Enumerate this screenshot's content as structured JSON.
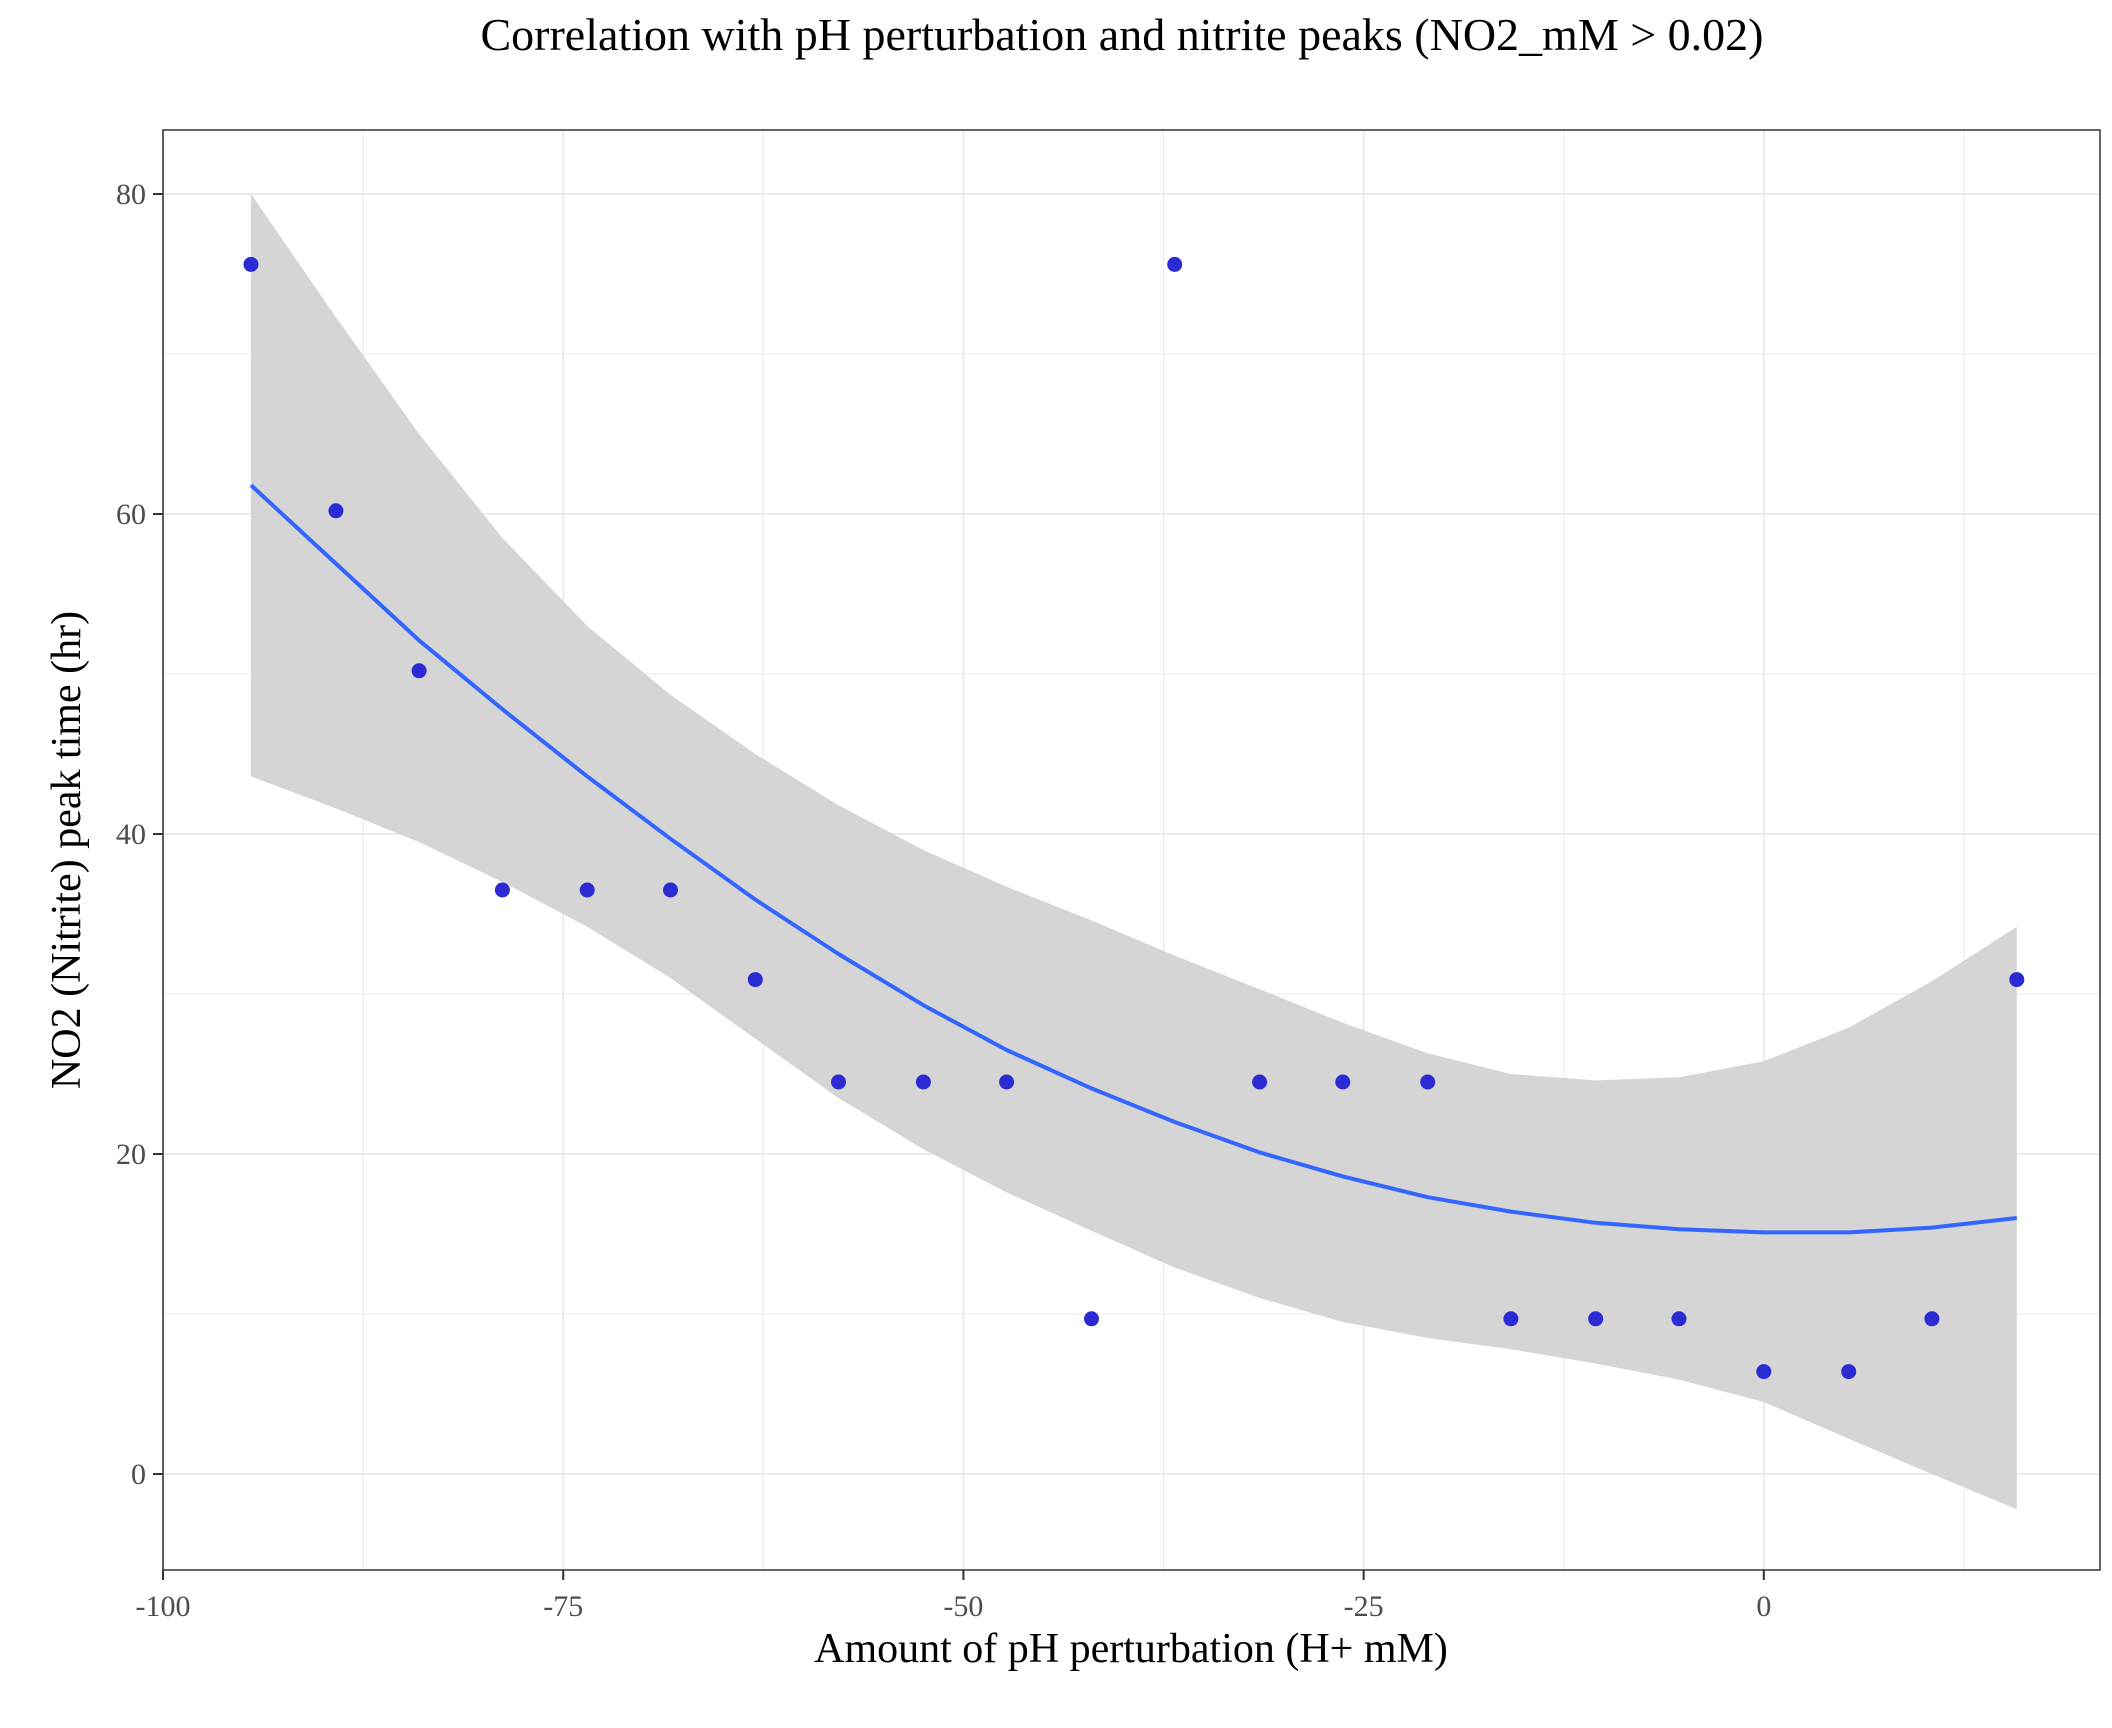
{
  "chart_data": {
    "type": "scatter",
    "title": "Correlation with pH perturbation and nitrite peaks (NO2_mM > 0.02)",
    "xlabel": "Amount of pH perturbation (H+ mM)",
    "ylabel": "NO2 (Nitrite) peak time (hr)",
    "xlim": [
      -100,
      21
    ],
    "ylim": [
      -6,
      84
    ],
    "x_ticks": [
      -100,
      -75,
      -50,
      -25,
      0
    ],
    "x_tick_labels": [
      "-100",
      "-75",
      "-50",
      "-25",
      "0"
    ],
    "y_ticks": [
      0,
      20,
      40,
      60,
      80
    ],
    "y_tick_labels": [
      "0",
      "20",
      "40",
      "60",
      "80"
    ],
    "grid": true,
    "legend": "none",
    "points": [
      {
        "x": -94.5,
        "y": 75.6
      },
      {
        "x": -89.2,
        "y": 60.2
      },
      {
        "x": -84.0,
        "y": 50.2
      },
      {
        "x": -78.8,
        "y": 36.5
      },
      {
        "x": -73.5,
        "y": 36.5
      },
      {
        "x": -68.3,
        "y": 36.5
      },
      {
        "x": -63.0,
        "y": 30.9
      },
      {
        "x": -57.8,
        "y": 24.5
      },
      {
        "x": -52.5,
        "y": 24.5
      },
      {
        "x": -47.3,
        "y": 24.5
      },
      {
        "x": -42.0,
        "y": 9.7
      },
      {
        "x": -36.8,
        "y": 75.6
      },
      {
        "x": -31.5,
        "y": 24.5
      },
      {
        "x": -26.3,
        "y": 24.5
      },
      {
        "x": -21.0,
        "y": 24.5
      },
      {
        "x": -15.8,
        "y": 9.7
      },
      {
        "x": -10.5,
        "y": 9.7
      },
      {
        "x": -5.3,
        "y": 9.7
      },
      {
        "x": 0.0,
        "y": 6.4
      },
      {
        "x": 5.3,
        "y": 6.4
      },
      {
        "x": 10.5,
        "y": 9.7
      },
      {
        "x": 15.8,
        "y": 30.9
      }
    ],
    "smooth_fit": {
      "x": [
        -94.5,
        -89.2,
        -84.0,
        -78.8,
        -73.5,
        -68.3,
        -63.0,
        -57.8,
        -52.5,
        -47.3,
        -42.0,
        -36.8,
        -31.5,
        -26.3,
        -21.0,
        -15.8,
        -10.5,
        -5.3,
        0.0,
        5.3,
        10.5,
        15.8
      ],
      "y": [
        61.8,
        56.9,
        52.1,
        47.8,
        43.6,
        39.7,
        35.9,
        32.5,
        29.3,
        26.5,
        24.1,
        22.0,
        20.1,
        18.6,
        17.3,
        16.4,
        15.7,
        15.3,
        15.1,
        15.1,
        15.4,
        16.0
      ]
    },
    "confidence_band": {
      "x": [
        -94.5,
        -89.2,
        -84.0,
        -78.8,
        -73.5,
        -68.3,
        -63.0,
        -57.8,
        -52.5,
        -47.3,
        -42.0,
        -36.8,
        -31.5,
        -26.3,
        -21.0,
        -15.8,
        -10.5,
        -5.3,
        0.0,
        5.3,
        10.5,
        15.8
      ],
      "upper": [
        80.0,
        72.3,
        65.0,
        58.5,
        53.0,
        48.7,
        45.0,
        41.8,
        39.0,
        36.7,
        34.6,
        32.4,
        30.3,
        28.2,
        26.3,
        25.0,
        24.6,
        24.8,
        25.8,
        27.9,
        30.8,
        34.2
      ],
      "lower": [
        43.6,
        41.6,
        39.5,
        37.0,
        34.2,
        31.0,
        27.2,
        23.5,
        20.3,
        17.6,
        15.2,
        12.9,
        11.0,
        9.5,
        8.5,
        7.8,
        6.9,
        5.9,
        4.5,
        2.2,
        0.0,
        -2.2
      ]
    },
    "colors": {
      "points": "#2b2bd4",
      "line": "#3366ff",
      "band": "#d5d5d5",
      "grid": "#ebebeb",
      "panel_border": "#333333"
    }
  }
}
